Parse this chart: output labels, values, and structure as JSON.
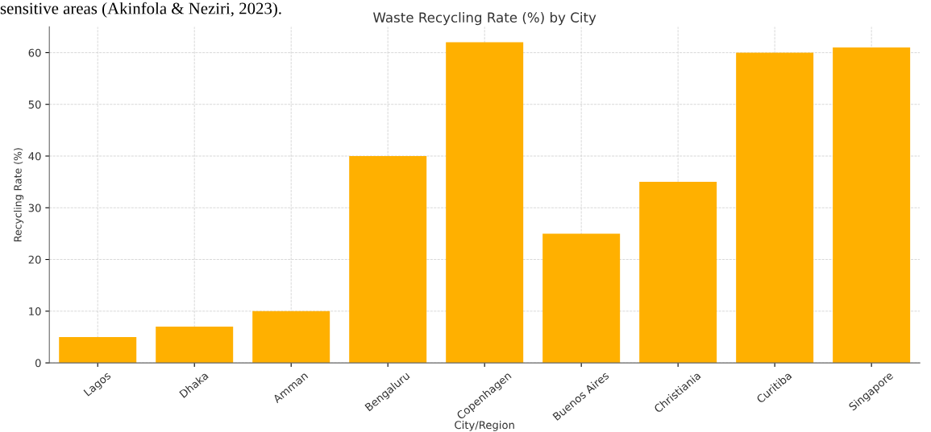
{
  "chart_data": {
    "type": "bar",
    "title": "Waste Recycling Rate (%) by City",
    "xlabel": "City/Region",
    "ylabel": "Recycling Rate (%)",
    "categories": [
      "Lagos",
      "Dhaka",
      "Amman",
      "Bengaluru",
      "Copenhagen",
      "Buenos Aires",
      "Christiania",
      "Curitiba",
      "Singapore"
    ],
    "values": [
      5,
      7,
      10,
      40,
      62,
      25,
      35,
      60,
      61
    ],
    "color": "#ffb000",
    "ylim": [
      0,
      65
    ],
    "yticks": [
      0,
      10,
      20,
      30,
      40,
      50,
      60
    ],
    "grid": true,
    "annotations": [
      "sensitive areas (Akinfola & Neziri, 2023)."
    ]
  }
}
